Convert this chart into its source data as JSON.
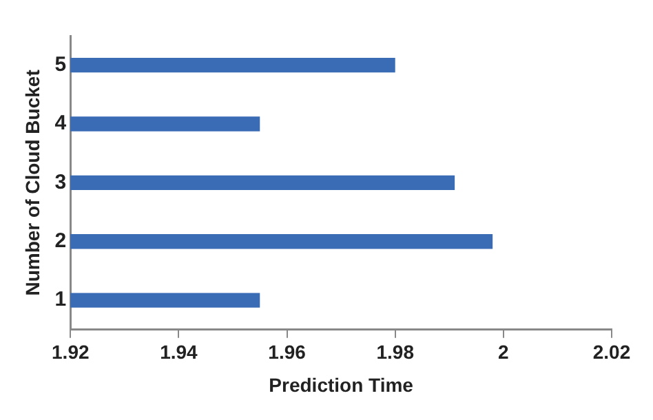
{
  "chart_data": {
    "type": "bar",
    "orientation": "horizontal",
    "xlabel": "Prediction Time",
    "ylabel": "Number of Cloud Bucket",
    "categories": [
      "5",
      "4",
      "3",
      "2",
      "1"
    ],
    "values": [
      1.98,
      1.955,
      1.991,
      1.998,
      1.955
    ],
    "color": "#3a6bb5",
    "xlim": [
      1.92,
      2.02
    ],
    "xticks": [
      1.92,
      1.94,
      1.96,
      1.98,
      2,
      2.02
    ],
    "grid": false,
    "legend": false
  }
}
